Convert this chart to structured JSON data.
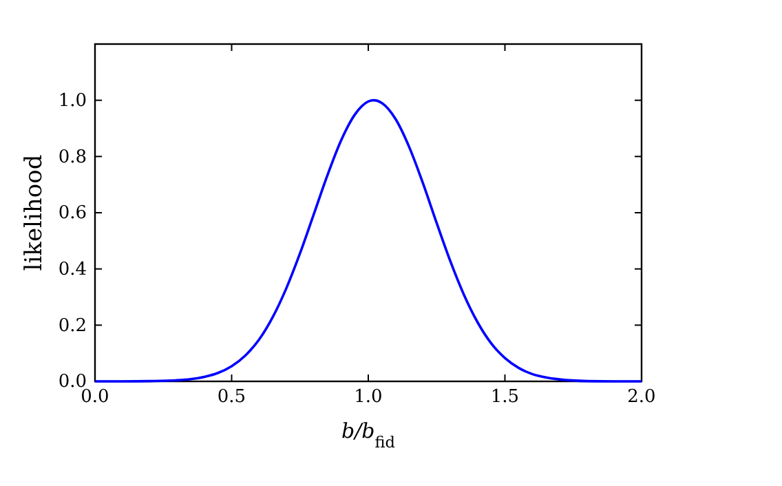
{
  "chart_data": {
    "type": "line",
    "xlabel": "b/b$_{fid}$",
    "ylabel": "likelihood",
    "x": [
      0,
      0.1,
      0.2,
      0.3,
      0.35,
      0.4,
      0.45,
      0.5,
      0.55,
      0.6,
      0.65,
      0.7,
      0.75,
      0.8,
      0.85,
      0.9,
      0.95,
      1.0,
      1.02,
      1.05,
      1.1,
      1.15,
      1.2,
      1.25,
      1.3,
      1.35,
      1.4,
      1.45,
      1.5,
      1.55,
      1.6,
      1.65,
      1.7,
      1.8,
      1.9,
      2.0
    ],
    "series": [
      {
        "color": "#0000ff",
        "values": [
          0,
          0,
          0.001,
          0.004,
          0.008,
          0.016,
          0.03,
          0.054,
          0.092,
          0.148,
          0.228,
          0.331,
          0.455,
          0.593,
          0.732,
          0.856,
          0.948,
          0.996,
          1.0,
          0.99,
          0.933,
          0.833,
          0.705,
          0.564,
          0.428,
          0.308,
          0.21,
          0.135,
          0.083,
          0.048,
          0.026,
          0.014,
          0.007,
          0.001,
          0,
          0
        ]
      }
    ],
    "xlim": [
      0,
      2
    ],
    "ylim": [
      0,
      1.2
    ],
    "xticks": [
      {
        "value": 0,
        "label": "0.0"
      },
      {
        "value": 0.5,
        "label": "0.5"
      },
      {
        "value": 1,
        "label": "1.0"
      },
      {
        "value": 1.5,
        "label": "1.5"
      },
      {
        "value": 2,
        "label": "2.0"
      }
    ],
    "yticks": [
      {
        "value": 0,
        "label": "0.0"
      },
      {
        "value": 0.2,
        "label": "0.2"
      },
      {
        "value": 0.4,
        "label": "0.4"
      },
      {
        "value": 0.6,
        "label": "0.6"
      },
      {
        "value": 0.8,
        "label": "0.8"
      },
      {
        "value": 1,
        "label": "1.0"
      }
    ],
    "grid": false,
    "marker": "none",
    "line_style": "solid"
  }
}
